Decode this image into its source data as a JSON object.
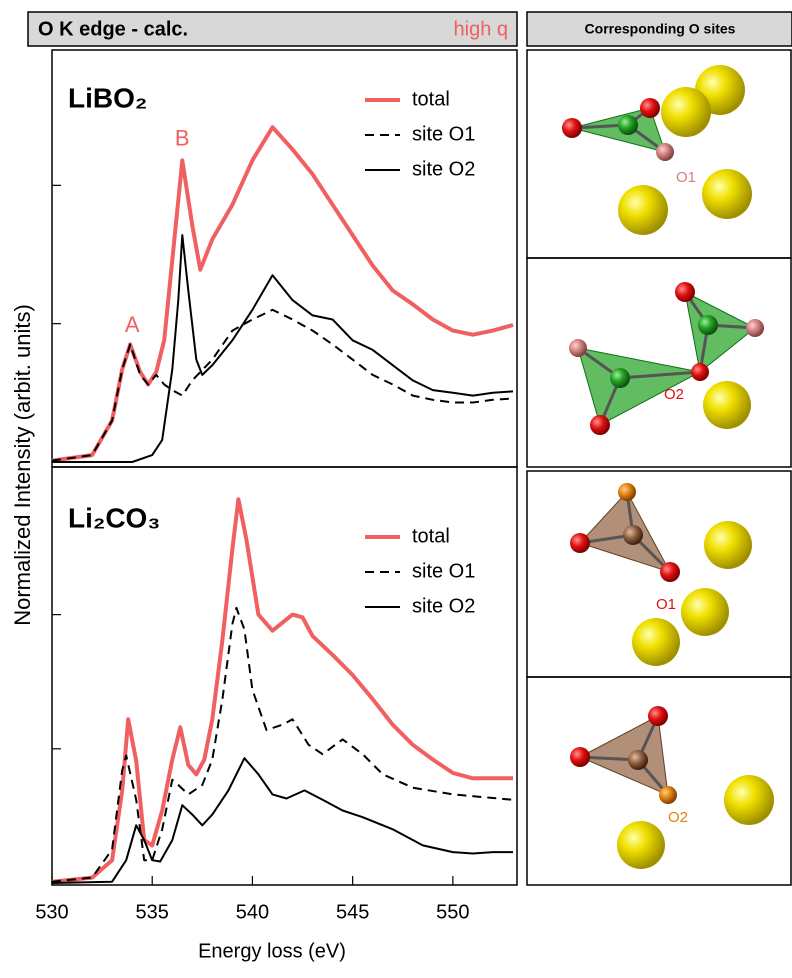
{
  "chart_data": [
    {
      "type": "line",
      "title": "O K edge - calc.",
      "subtitle": "high q",
      "label": "LiBO₂",
      "ylabel": "Normalized Intensity (arbit. units)",
      "xlim": [
        530,
        553.2
      ],
      "ylim": [
        0,
        3
      ],
      "yticks": [
        1,
        2
      ],
      "annotations": [
        "A",
        "B"
      ],
      "series": [
        {
          "name": "total",
          "color": "#f06060",
          "dash": false,
          "x": [
            530,
            532,
            533,
            533.5,
            533.9,
            534.4,
            534.8,
            535.2,
            535.6,
            536,
            536.5,
            537,
            537.4,
            538,
            539,
            540,
            541,
            542,
            543,
            544,
            545,
            546,
            547,
            548,
            549,
            550,
            551,
            552,
            553
          ],
          "values": [
            0.01,
            0.05,
            0.3,
            0.67,
            0.85,
            0.65,
            0.56,
            0.65,
            0.88,
            1.46,
            2.18,
            1.71,
            1.39,
            1.61,
            1.86,
            2.18,
            2.42,
            2.26,
            2.08,
            1.86,
            1.64,
            1.42,
            1.24,
            1.14,
            1.03,
            0.95,
            0.92,
            0.95,
            0.99
          ]
        },
        {
          "name": "site O1",
          "color": "#000000",
          "dash": true,
          "x": [
            530,
            532,
            533,
            533.5,
            533.9,
            534.4,
            534.8,
            535.2,
            535.6,
            536,
            536.5,
            537,
            538,
            539,
            540,
            541,
            542,
            543,
            544,
            545,
            546,
            547,
            548,
            549,
            550,
            551,
            552,
            553
          ],
          "values": [
            0.01,
            0.05,
            0.3,
            0.67,
            0.85,
            0.63,
            0.56,
            0.63,
            0.56,
            0.52,
            0.48,
            0.59,
            0.74,
            0.95,
            1.03,
            1.1,
            1.03,
            0.95,
            0.85,
            0.74,
            0.63,
            0.56,
            0.48,
            0.45,
            0.43,
            0.43,
            0.45,
            0.46
          ]
        },
        {
          "name": "site O2",
          "color": "#000000",
          "dash": false,
          "x": [
            530,
            534,
            535,
            535.5,
            536,
            536.3,
            536.5,
            536.8,
            537.2,
            537.5,
            538,
            539,
            540,
            541,
            542,
            543,
            544,
            545,
            546,
            547,
            548,
            549,
            550,
            551,
            552,
            553
          ],
          "values": [
            0,
            0,
            0.05,
            0.16,
            0.67,
            1.17,
            1.64,
            1.24,
            0.74,
            0.63,
            0.7,
            0.88,
            1.1,
            1.35,
            1.17,
            1.06,
            1.03,
            0.88,
            0.81,
            0.7,
            0.59,
            0.52,
            0.5,
            0.48,
            0.5,
            0.51
          ]
        }
      ]
    },
    {
      "type": "line",
      "label": "Li₂CO₃",
      "xlabel": "Energy loss (eV)",
      "xlim": [
        530,
        553.2
      ],
      "xticks": [
        530,
        535,
        540,
        545,
        550
      ],
      "ylim": [
        0,
        3.1
      ],
      "yticks": [
        1,
        2
      ],
      "series": [
        {
          "name": "total",
          "color": "#f06060",
          "dash": false,
          "x": [
            530,
            532,
            533,
            533.5,
            533.8,
            534.2,
            534.6,
            535,
            535.5,
            536,
            536.4,
            536.8,
            537.2,
            537.6,
            538,
            538.5,
            539,
            539.3,
            539.7,
            540.3,
            541,
            542,
            542.5,
            543,
            544,
            545,
            546,
            547,
            548,
            549,
            550,
            551,
            552,
            553
          ],
          "values": [
            0.01,
            0.04,
            0.17,
            0.69,
            1.22,
            0.91,
            0.32,
            0.28,
            0.54,
            0.92,
            1.16,
            0.88,
            0.81,
            0.92,
            1.22,
            1.81,
            2.49,
            2.86,
            2.56,
            2.0,
            1.88,
            2.0,
            1.98,
            1.84,
            1.7,
            1.55,
            1.37,
            1.18,
            1.03,
            0.92,
            0.82,
            0.78,
            0.78,
            0.78
          ]
        },
        {
          "name": "site O1",
          "color": "#000000",
          "dash": true,
          "x": [
            530,
            532,
            533,
            533.5,
            533.7,
            534.2,
            534.6,
            535,
            535.5,
            536,
            536.3,
            536.8,
            537.5,
            538,
            538.5,
            539,
            539.2,
            539.6,
            540,
            540.7,
            541.5,
            542,
            542.8,
            543.5,
            544.5,
            545.5,
            546.5,
            548,
            550,
            553
          ],
          "values": [
            0.01,
            0.04,
            0.25,
            0.84,
            0.95,
            0.62,
            0.17,
            0.17,
            0.4,
            0.77,
            0.73,
            0.66,
            0.73,
            0.92,
            1.37,
            1.93,
            2.05,
            1.89,
            1.44,
            1.14,
            1.18,
            1.22,
            1.03,
            0.96,
            1.07,
            0.96,
            0.81,
            0.71,
            0.66,
            0.62
          ]
        },
        {
          "name": "site O2",
          "color": "#000000",
          "dash": false,
          "x": [
            530,
            533,
            533.7,
            534.2,
            534.6,
            535,
            535.4,
            536,
            536.5,
            537,
            537.5,
            538,
            538.8,
            539.6,
            540.3,
            541,
            541.7,
            542.6,
            543.5,
            544.5,
            545.5,
            547,
            548.5,
            550,
            551,
            552,
            553
          ],
          "values": [
            0,
            0.01,
            0.17,
            0.43,
            0.32,
            0.17,
            0.16,
            0.32,
            0.58,
            0.51,
            0.43,
            0.51,
            0.69,
            0.93,
            0.81,
            0.66,
            0.63,
            0.69,
            0.62,
            0.54,
            0.49,
            0.4,
            0.28,
            0.23,
            0.22,
            0.23,
            0.23
          ]
        }
      ]
    }
  ],
  "structures": {
    "title": "Corresponding O sites",
    "panels": [
      {
        "label": "O1"
      },
      {
        "label": "O2"
      },
      {
        "label": "O1"
      },
      {
        "label": "O2"
      }
    ]
  }
}
